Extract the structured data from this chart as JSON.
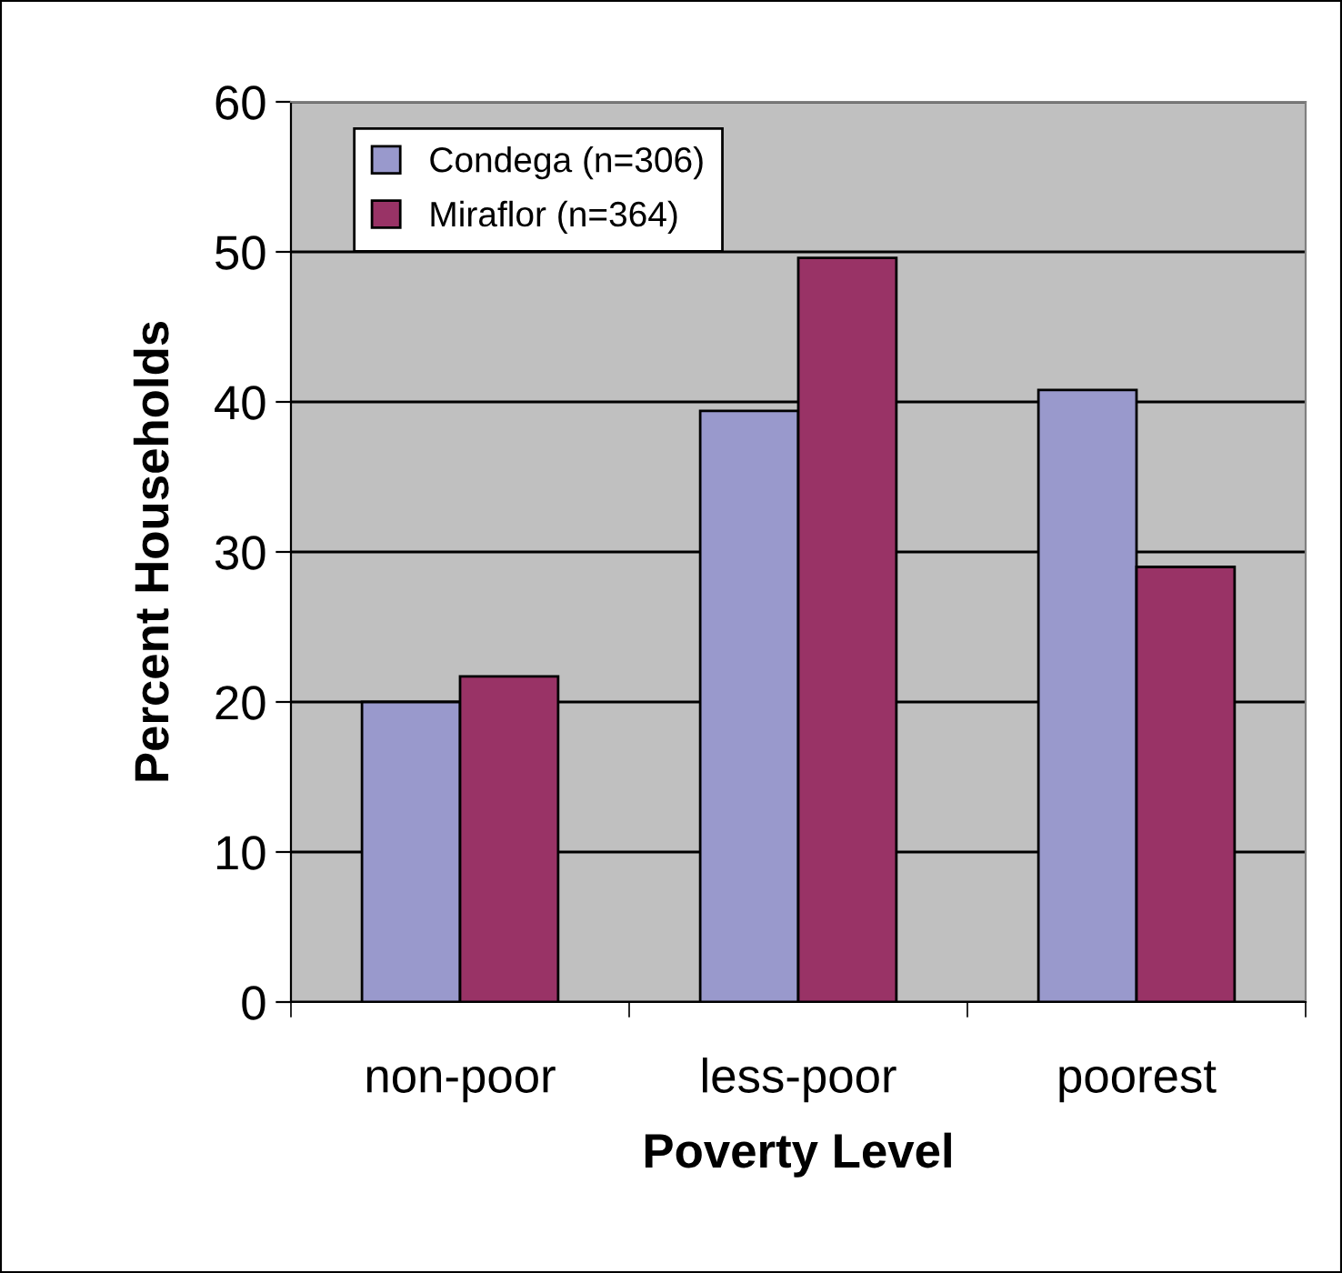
{
  "chart_data": {
    "type": "bar",
    "xlabel": "Poverty Level",
    "ylabel": "Percent Households",
    "categories": [
      "non-poor",
      "less-poor",
      "poorest"
    ],
    "series": [
      {
        "name": "Condega (n=306)",
        "color": "#9999cc",
        "values": [
          20.0,
          39.4,
          40.8
        ]
      },
      {
        "name": "Miraflor (n=364)",
        "color": "#993366",
        "values": [
          21.7,
          49.6,
          29.0
        ]
      }
    ],
    "ylim": [
      0,
      60
    ],
    "yticks": [
      0,
      10,
      20,
      30,
      40,
      50,
      60
    ],
    "grid": "y",
    "legend": "top left"
  }
}
